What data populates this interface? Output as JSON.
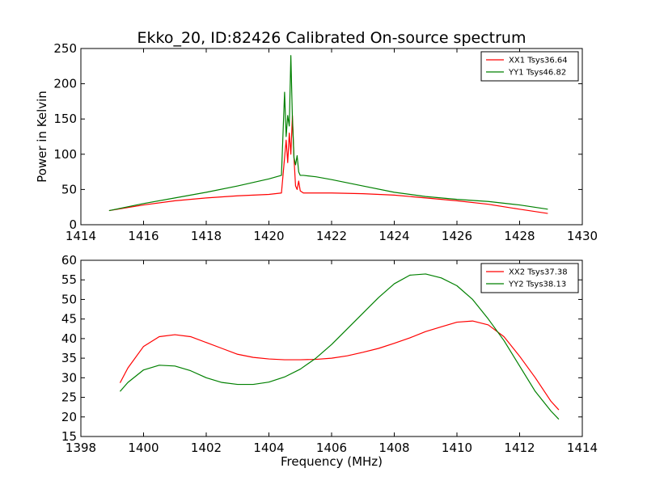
{
  "title": "Ekko_20, ID:82426 Calibrated On-source spectrum",
  "chart_data": [
    {
      "type": "line",
      "title": "Ekko_20, ID:82426 Calibrated On-source spectrum",
      "xlabel": "",
      "ylabel": "Power in Kelvin",
      "xlim": [
        1414,
        1430
      ],
      "ylim": [
        0,
        250
      ],
      "xticks": [
        1414,
        1416,
        1418,
        1420,
        1422,
        1424,
        1426,
        1428,
        1430
      ],
      "yticks": [
        0,
        50,
        100,
        150,
        200,
        250
      ],
      "grid": false,
      "legend_position": "top-right",
      "series": [
        {
          "name": "XX1 Tsys36.64",
          "color": "#ff0000",
          "x": [
            1414.9,
            1416.0,
            1417.0,
            1418.0,
            1419.0,
            1420.0,
            1420.4,
            1420.55,
            1420.6,
            1420.65,
            1420.7,
            1420.75,
            1420.8,
            1420.85,
            1420.9,
            1420.95,
            1421.0,
            1421.1,
            1421.5,
            1422.0,
            1423.0,
            1424.0,
            1425.0,
            1426.0,
            1427.0,
            1428.0,
            1428.9
          ],
          "values": [
            20,
            28,
            34,
            38,
            41,
            43,
            45,
            120,
            88,
            130,
            100,
            155,
            95,
            55,
            50,
            62,
            48,
            45,
            45,
            45,
            44,
            42,
            38,
            34,
            29,
            22,
            16
          ]
        },
        {
          "name": "YY1 Tsys46.82",
          "color": "#008000",
          "x": [
            1414.9,
            1416.0,
            1417.0,
            1418.0,
            1419.0,
            1420.0,
            1420.4,
            1420.5,
            1420.55,
            1420.6,
            1420.65,
            1420.7,
            1420.75,
            1420.8,
            1420.85,
            1420.9,
            1420.95,
            1421.0,
            1421.1,
            1421.5,
            1422.0,
            1423.0,
            1424.0,
            1425.0,
            1426.0,
            1427.0,
            1428.0,
            1428.9
          ],
          "values": [
            20,
            30,
            38,
            46,
            55,
            65,
            70,
            188,
            125,
            155,
            140,
            240,
            150,
            95,
            85,
            98,
            75,
            70,
            70,
            68,
            64,
            55,
            46,
            40,
            36,
            33,
            28,
            22
          ]
        }
      ]
    },
    {
      "type": "line",
      "title": "",
      "xlabel": "Frequency (MHz)",
      "ylabel": "",
      "xlim": [
        1398,
        1414
      ],
      "ylim": [
        15,
        60
      ],
      "xticks": [
        1398,
        1400,
        1402,
        1404,
        1406,
        1408,
        1410,
        1412,
        1414
      ],
      "yticks": [
        15,
        20,
        25,
        30,
        35,
        40,
        45,
        50,
        55,
        60
      ],
      "grid": false,
      "legend_position": "top-right",
      "series": [
        {
          "name": "XX2 Tsys37.38",
          "color": "#ff0000",
          "x": [
            1399.25,
            1399.5,
            1400.0,
            1400.5,
            1401.0,
            1401.5,
            1402.0,
            1402.5,
            1403.0,
            1403.5,
            1404.0,
            1404.5,
            1405.0,
            1405.5,
            1406.0,
            1406.5,
            1407.0,
            1407.5,
            1408.0,
            1408.5,
            1409.0,
            1409.5,
            1410.0,
            1410.5,
            1411.0,
            1411.5,
            1412.0,
            1412.5,
            1413.0,
            1413.25
          ],
          "values": [
            28.7,
            32.5,
            38.0,
            40.5,
            41.0,
            40.5,
            39.0,
            37.5,
            36.0,
            35.2,
            34.8,
            34.6,
            34.6,
            34.7,
            35.0,
            35.6,
            36.5,
            37.5,
            38.8,
            40.2,
            41.8,
            43.0,
            44.2,
            44.5,
            43.5,
            40.5,
            35.5,
            30.0,
            24.0,
            21.8
          ]
        },
        {
          "name": "YY2 Tsys38.13",
          "color": "#008000",
          "x": [
            1399.25,
            1399.5,
            1400.0,
            1400.5,
            1401.0,
            1401.5,
            1402.0,
            1402.5,
            1403.0,
            1403.5,
            1404.0,
            1404.5,
            1405.0,
            1405.5,
            1406.0,
            1406.5,
            1407.0,
            1407.5,
            1408.0,
            1408.5,
            1409.0,
            1409.5,
            1410.0,
            1410.5,
            1411.0,
            1411.5,
            1412.0,
            1412.5,
            1413.0,
            1413.25
          ],
          "values": [
            26.5,
            28.8,
            32.0,
            33.2,
            33.0,
            31.8,
            30.0,
            28.8,
            28.3,
            28.3,
            28.9,
            30.2,
            32.2,
            35.0,
            38.5,
            42.5,
            46.5,
            50.5,
            54.0,
            56.2,
            56.5,
            55.5,
            53.5,
            50.0,
            45.0,
            39.5,
            33.0,
            26.5,
            21.5,
            19.4
          ]
        }
      ]
    }
  ]
}
